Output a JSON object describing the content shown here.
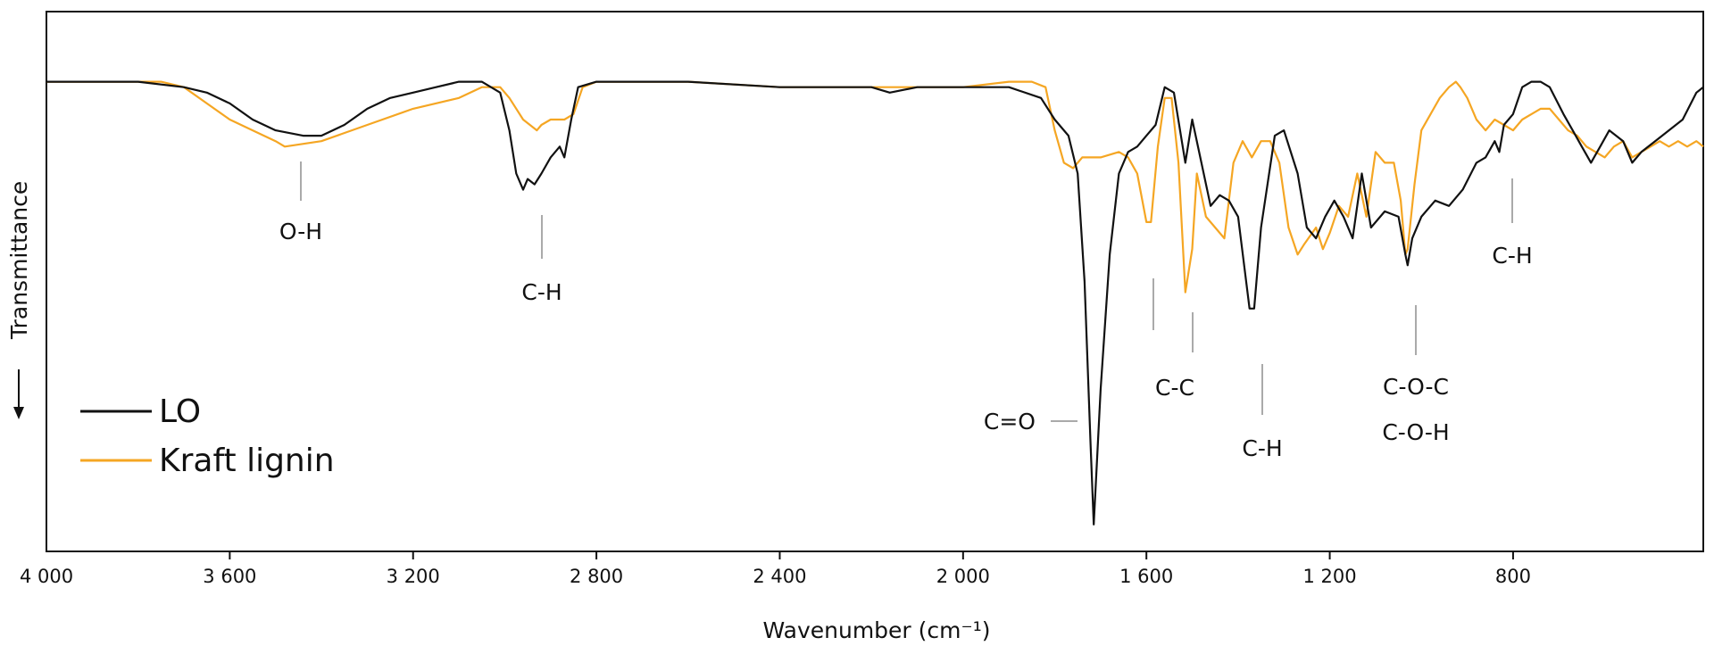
{
  "chart_data": {
    "type": "line",
    "title": "",
    "xlabel": "Wavenumber (cm⁻¹)",
    "ylabel": "Transmittance",
    "xlim": [
      4000,
      385
    ],
    "x_reversed": true,
    "ylim": [
      0,
      1
    ],
    "y_ticks_shown": false,
    "grid": false,
    "x_ticks": [
      4000,
      3600,
      3200,
      2800,
      2400,
      2000,
      1600,
      1200,
      800
    ],
    "x_tick_labels": [
      "4 000",
      "3 600",
      "3 200",
      "2 800",
      "2 400",
      "2 000",
      "1 600",
      "1 200",
      "800"
    ],
    "legend": {
      "position": "bottom-left",
      "entries": [
        "LO",
        "Kraft lignin"
      ]
    },
    "series": [
      {
        "name": "LO",
        "color": "#111111",
        "points": [
          [
            4000,
            0.87
          ],
          [
            3900,
            0.87
          ],
          [
            3800,
            0.87
          ],
          [
            3700,
            0.86
          ],
          [
            3650,
            0.85
          ],
          [
            3600,
            0.83
          ],
          [
            3550,
            0.8
          ],
          [
            3500,
            0.78
          ],
          [
            3440,
            0.77
          ],
          [
            3400,
            0.77
          ],
          [
            3350,
            0.79
          ],
          [
            3300,
            0.82
          ],
          [
            3250,
            0.84
          ],
          [
            3200,
            0.85
          ],
          [
            3150,
            0.86
          ],
          [
            3100,
            0.87
          ],
          [
            3050,
            0.87
          ],
          [
            3010,
            0.85
          ],
          [
            2990,
            0.78
          ],
          [
            2975,
            0.7
          ],
          [
            2960,
            0.67
          ],
          [
            2950,
            0.69
          ],
          [
            2935,
            0.68
          ],
          [
            2920,
            0.7
          ],
          [
            2900,
            0.73
          ],
          [
            2880,
            0.75
          ],
          [
            2870,
            0.73
          ],
          [
            2855,
            0.8
          ],
          [
            2840,
            0.86
          ],
          [
            2800,
            0.87
          ],
          [
            2600,
            0.87
          ],
          [
            2400,
            0.86
          ],
          [
            2200,
            0.86
          ],
          [
            2160,
            0.85
          ],
          [
            2100,
            0.86
          ],
          [
            2000,
            0.86
          ],
          [
            1900,
            0.86
          ],
          [
            1830,
            0.84
          ],
          [
            1800,
            0.8
          ],
          [
            1770,
            0.77
          ],
          [
            1750,
            0.7
          ],
          [
            1735,
            0.5
          ],
          [
            1722,
            0.2
          ],
          [
            1715,
            0.05
          ],
          [
            1700,
            0.3
          ],
          [
            1680,
            0.55
          ],
          [
            1660,
            0.7
          ],
          [
            1640,
            0.74
          ],
          [
            1620,
            0.75
          ],
          [
            1600,
            0.77
          ],
          [
            1580,
            0.79
          ],
          [
            1560,
            0.86
          ],
          [
            1540,
            0.85
          ],
          [
            1515,
            0.72
          ],
          [
            1500,
            0.8
          ],
          [
            1480,
            0.72
          ],
          [
            1460,
            0.64
          ],
          [
            1440,
            0.66
          ],
          [
            1420,
            0.65
          ],
          [
            1400,
            0.62
          ],
          [
            1375,
            0.45
          ],
          [
            1365,
            0.45
          ],
          [
            1350,
            0.6
          ],
          [
            1320,
            0.77
          ],
          [
            1300,
            0.78
          ],
          [
            1270,
            0.7
          ],
          [
            1250,
            0.6
          ],
          [
            1230,
            0.58
          ],
          [
            1210,
            0.62
          ],
          [
            1190,
            0.65
          ],
          [
            1170,
            0.62
          ],
          [
            1150,
            0.58
          ],
          [
            1130,
            0.7
          ],
          [
            1110,
            0.6
          ],
          [
            1080,
            0.63
          ],
          [
            1050,
            0.62
          ],
          [
            1035,
            0.55
          ],
          [
            1030,
            0.53
          ],
          [
            1020,
            0.58
          ],
          [
            1000,
            0.62
          ],
          [
            970,
            0.65
          ],
          [
            940,
            0.64
          ],
          [
            910,
            0.67
          ],
          [
            880,
            0.72
          ],
          [
            860,
            0.73
          ],
          [
            840,
            0.76
          ],
          [
            830,
            0.74
          ],
          [
            820,
            0.79
          ],
          [
            800,
            0.81
          ],
          [
            780,
            0.86
          ],
          [
            760,
            0.87
          ],
          [
            740,
            0.87
          ],
          [
            720,
            0.86
          ],
          [
            690,
            0.81
          ],
          [
            670,
            0.78
          ],
          [
            650,
            0.75
          ],
          [
            630,
            0.72
          ],
          [
            610,
            0.75
          ],
          [
            590,
            0.78
          ],
          [
            560,
            0.76
          ],
          [
            540,
            0.72
          ],
          [
            520,
            0.74
          ],
          [
            490,
            0.76
          ],
          [
            460,
            0.78
          ],
          [
            430,
            0.8
          ],
          [
            400,
            0.85
          ],
          [
            385,
            0.86
          ]
        ]
      },
      {
        "name": "Kraft lignin",
        "color": "#F5A623",
        "points": [
          [
            4000,
            0.87
          ],
          [
            3900,
            0.87
          ],
          [
            3800,
            0.87
          ],
          [
            3750,
            0.87
          ],
          [
            3700,
            0.86
          ],
          [
            3650,
            0.83
          ],
          [
            3600,
            0.8
          ],
          [
            3550,
            0.78
          ],
          [
            3500,
            0.76
          ],
          [
            3480,
            0.75
          ],
          [
            3400,
            0.76
          ],
          [
            3300,
            0.79
          ],
          [
            3200,
            0.82
          ],
          [
            3100,
            0.84
          ],
          [
            3050,
            0.86
          ],
          [
            3010,
            0.86
          ],
          [
            2990,
            0.84
          ],
          [
            2960,
            0.8
          ],
          [
            2930,
            0.78
          ],
          [
            2920,
            0.79
          ],
          [
            2900,
            0.8
          ],
          [
            2870,
            0.8
          ],
          [
            2850,
            0.81
          ],
          [
            2830,
            0.86
          ],
          [
            2800,
            0.87
          ],
          [
            2600,
            0.87
          ],
          [
            2400,
            0.86
          ],
          [
            2350,
            0.86
          ],
          [
            2200,
            0.86
          ],
          [
            2000,
            0.86
          ],
          [
            1900,
            0.87
          ],
          [
            1850,
            0.87
          ],
          [
            1820,
            0.86
          ],
          [
            1800,
            0.78
          ],
          [
            1780,
            0.72
          ],
          [
            1760,
            0.71
          ],
          [
            1740,
            0.73
          ],
          [
            1700,
            0.73
          ],
          [
            1660,
            0.74
          ],
          [
            1640,
            0.73
          ],
          [
            1620,
            0.7
          ],
          [
            1600,
            0.61
          ],
          [
            1590,
            0.61
          ],
          [
            1575,
            0.75
          ],
          [
            1560,
            0.84
          ],
          [
            1545,
            0.84
          ],
          [
            1530,
            0.72
          ],
          [
            1515,
            0.48
          ],
          [
            1500,
            0.56
          ],
          [
            1490,
            0.7
          ],
          [
            1470,
            0.62
          ],
          [
            1450,
            0.6
          ],
          [
            1430,
            0.58
          ],
          [
            1410,
            0.72
          ],
          [
            1390,
            0.76
          ],
          [
            1370,
            0.73
          ],
          [
            1350,
            0.76
          ],
          [
            1330,
            0.76
          ],
          [
            1310,
            0.72
          ],
          [
            1290,
            0.6
          ],
          [
            1270,
            0.55
          ],
          [
            1255,
            0.57
          ],
          [
            1230,
            0.6
          ],
          [
            1215,
            0.56
          ],
          [
            1200,
            0.59
          ],
          [
            1180,
            0.64
          ],
          [
            1160,
            0.62
          ],
          [
            1140,
            0.7
          ],
          [
            1120,
            0.62
          ],
          [
            1100,
            0.74
          ],
          [
            1080,
            0.72
          ],
          [
            1060,
            0.72
          ],
          [
            1045,
            0.65
          ],
          [
            1035,
            0.55
          ],
          [
            1030,
            0.56
          ],
          [
            1015,
            0.68
          ],
          [
            1000,
            0.78
          ],
          [
            980,
            0.81
          ],
          [
            960,
            0.84
          ],
          [
            940,
            0.86
          ],
          [
            925,
            0.87
          ],
          [
            915,
            0.86
          ],
          [
            900,
            0.84
          ],
          [
            880,
            0.8
          ],
          [
            860,
            0.78
          ],
          [
            840,
            0.8
          ],
          [
            820,
            0.79
          ],
          [
            800,
            0.78
          ],
          [
            780,
            0.8
          ],
          [
            760,
            0.81
          ],
          [
            740,
            0.82
          ],
          [
            720,
            0.82
          ],
          [
            700,
            0.8
          ],
          [
            680,
            0.78
          ],
          [
            660,
            0.77
          ],
          [
            640,
            0.75
          ],
          [
            620,
            0.74
          ],
          [
            600,
            0.73
          ],
          [
            580,
            0.75
          ],
          [
            560,
            0.76
          ],
          [
            540,
            0.73
          ],
          [
            520,
            0.74
          ],
          [
            500,
            0.75
          ],
          [
            480,
            0.76
          ],
          [
            460,
            0.75
          ],
          [
            440,
            0.76
          ],
          [
            420,
            0.75
          ],
          [
            400,
            0.76
          ],
          [
            385,
            0.75
          ]
        ]
      }
    ],
    "annotations": [
      {
        "text": "O-H",
        "x": 3440
      },
      {
        "text": "C-H",
        "x": 2930
      },
      {
        "text": "C=O",
        "x": 1715
      },
      {
        "text": "C-C",
        "x": 1560
      },
      {
        "text": "C-H",
        "x": 1370
      },
      {
        "text": "C-O-C",
        "x": 1030
      },
      {
        "text": "C-O-H",
        "x": 1030
      },
      {
        "text": "C-H",
        "x": 820
      }
    ]
  }
}
